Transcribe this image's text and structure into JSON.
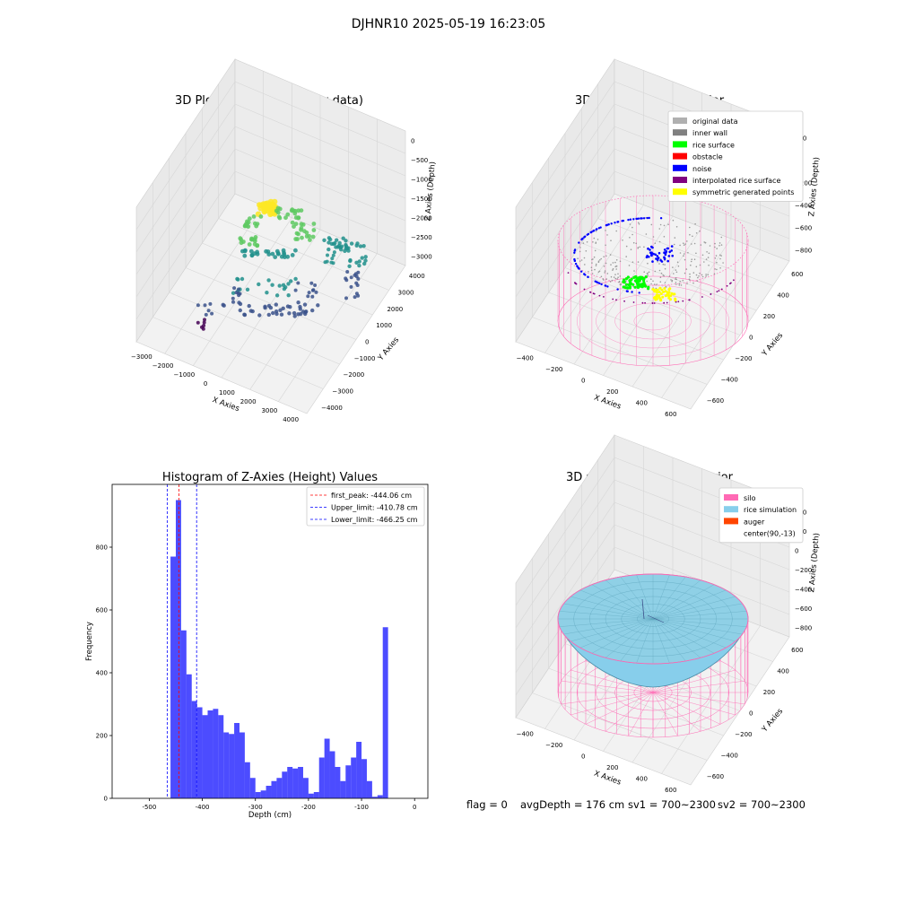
{
  "suptitle": "DJHNR10 2025-05-19 16:23:05",
  "status": {
    "flag": "flag = 0",
    "avg_depth": "avgDepth = 176 cm",
    "sv1": "sv1 = 700~2300",
    "sv2": "sv2 = 700~2300"
  },
  "chart_data": [
    {
      "type": "scatter",
      "title": "3D Plot of Silo Interior(row data)",
      "xlabel": "X Axies",
      "ylabel": "Y Axies",
      "zlabel": "Z Axies (Depth)",
      "xticks": [
        "−3000",
        "−2000",
        "−1000",
        "0",
        "1000",
        "2000",
        "3000",
        "4000"
      ],
      "yticks": [
        "−4000",
        "−3000",
        "−2000",
        "−1000",
        "0",
        "1000",
        "2000",
        "3000",
        "4000"
      ],
      "zticks": [
        "0",
        "−500",
        "−1000",
        "−1500",
        "−2000",
        "−2500",
        "−3000"
      ],
      "colormap": [
        "#440154",
        "#3b528b",
        "#21918c",
        "#5ec962",
        "#fde725"
      ]
    },
    {
      "type": "scatter",
      "title": "3D classify of Silo Interior",
      "xlabel": "X Axies",
      "ylabel": "Y Axies",
      "zlabel": "Z Axies (Depth)",
      "xticks": [
        "−400",
        "−200",
        "0",
        "200",
        "400",
        "600"
      ],
      "yticks": [
        "−600",
        "−400",
        "−200",
        "0",
        "200",
        "400",
        "600"
      ],
      "zticks": [
        "200",
        "0",
        "−200",
        "−400",
        "−600",
        "−800"
      ],
      "legend_position": "top-right",
      "legend": [
        {
          "label": "original data",
          "color": "#b0b0b0"
        },
        {
          "label": "inner wall",
          "color": "#808080"
        },
        {
          "label": "rice surface",
          "color": "#00ff00"
        },
        {
          "label": "obstacle",
          "color": "#ff0000"
        },
        {
          "label": "noise",
          "color": "#0000ff"
        },
        {
          "label": "interpolated rice surface",
          "color": "#800080"
        },
        {
          "label": "symmetric generated points",
          "color": "#ffff00"
        }
      ]
    },
    {
      "type": "bar",
      "title": "Histogram of Z-Axies (Height) Values",
      "xlabel": "Depth (cm)",
      "ylabel": "Frequency",
      "xlim": [
        -570,
        25
      ],
      "ylim": [
        0,
        1000
      ],
      "xticks": [
        -500,
        -400,
        -300,
        -200,
        -100,
        0
      ],
      "yticks": [
        0,
        200,
        400,
        600,
        800
      ],
      "bin_start": -460,
      "bin_width": 10,
      "values": [
        770,
        950,
        535,
        395,
        310,
        290,
        265,
        280,
        285,
        265,
        210,
        205,
        240,
        210,
        115,
        65,
        20,
        25,
        40,
        55,
        65,
        85,
        100,
        95,
        100,
        65,
        15,
        20,
        130,
        190,
        150,
        100,
        55,
        105,
        130,
        180,
        125,
        55,
        5,
        10,
        545
      ],
      "bar_color": "#0000ff",
      "legend_position": "top-right",
      "lines": [
        {
          "label": "first_peak: -444.06 cm",
          "x": -444.06,
          "color": "#ff0000"
        },
        {
          "label": "Upper_limit: -410.78 cm",
          "x": -410.78,
          "color": "#0000ff"
        },
        {
          "label": "Lower_limit: -466.25 cm",
          "x": -466.25,
          "color": "#0000ff"
        }
      ]
    },
    {
      "type": "surface",
      "title": "3D simulation of Silo Interior",
      "xlabel": "X Axies",
      "ylabel": "Y Axies",
      "zlabel": "Z Axies (Depth)",
      "xticks": [
        "−400",
        "−200",
        "0",
        "200",
        "400",
        "600"
      ],
      "yticks": [
        "−600",
        "−400",
        "−200",
        "0",
        "200",
        "400",
        "600"
      ],
      "zticks": [
        "400",
        "200",
        "0",
        "−200",
        "−400",
        "−600",
        "−800"
      ],
      "legend_position": "top-right",
      "legend": [
        {
          "label": "silo",
          "color": "#ff69b4"
        },
        {
          "label": "rice simulation",
          "color": "#87ceeb"
        },
        {
          "label": "auger",
          "color": "#ff4500"
        },
        {
          "label": "center(90,-13)",
          "color": "#ffffff"
        }
      ]
    }
  ]
}
